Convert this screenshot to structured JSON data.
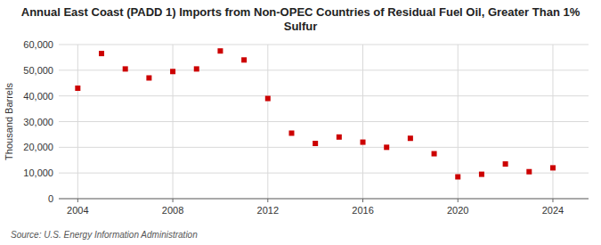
{
  "chart_data": {
    "type": "scatter",
    "title": "Annual East Coast (PADD 1) Imports from Non-OPEC Countries of Residual Fuel Oil, Greater Than 1% Sulfur",
    "ylabel": "Thousand Barrels",
    "source": "Source: U.S. Energy Information Administration",
    "x": [
      2004,
      2005,
      2006,
      2007,
      2008,
      2009,
      2010,
      2011,
      2012,
      2013,
      2014,
      2015,
      2016,
      2017,
      2018,
      2019,
      2020,
      2021,
      2022,
      2023,
      2024
    ],
    "values": [
      43000,
      56500,
      50500,
      47000,
      49500,
      50500,
      57500,
      54000,
      39000,
      25500,
      21500,
      24000,
      22000,
      20000,
      23500,
      17500,
      8500,
      9500,
      13500,
      10500,
      12000
    ],
    "color": "#cc0000",
    "marker": "square",
    "xlim": [
      2003.2,
      2025.5
    ],
    "xticks": [
      2004,
      2008,
      2012,
      2016,
      2020,
      2024
    ],
    "ylim": [
      0,
      60000
    ],
    "yticks": [
      0,
      {
        "value": 10000,
        "label": "10,000"
      },
      {
        "value": 20000,
        "label": "20,000"
      },
      {
        "value": 30000,
        "label": "30,000"
      },
      {
        "value": 40000,
        "label": "40,000"
      },
      {
        "value": 50000,
        "label": "50,000"
      },
      {
        "value": 60000,
        "label": "60,000"
      }
    ],
    "grid": true
  }
}
